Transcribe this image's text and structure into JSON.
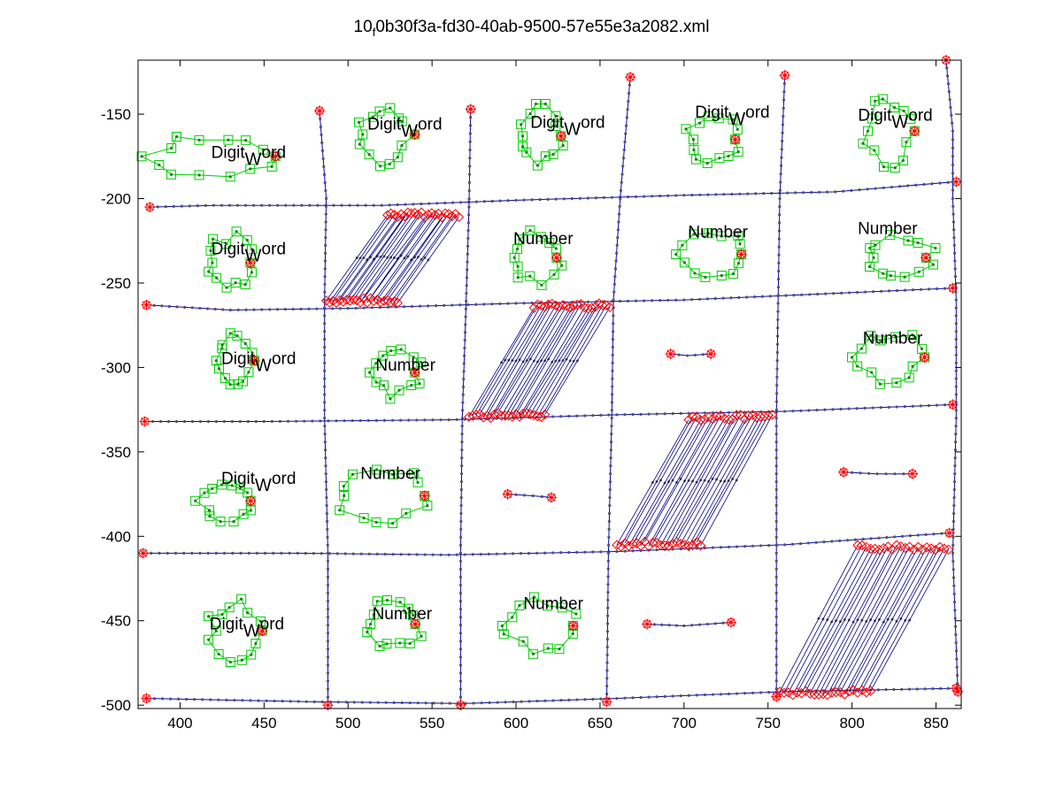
{
  "chart_data": {
    "type": "scatter",
    "title": {
      "main": "10",
      "sub": "f",
      "rest": "0b30f3a-fd30-40ab-9500-57e55e3a2082.xml"
    },
    "xlabel": "",
    "ylabel": "",
    "xlim": [
      375,
      865
    ],
    "ylim": [
      -502,
      -118
    ],
    "xticks": [
      400,
      450,
      500,
      550,
      600,
      650,
      700,
      750,
      800,
      850
    ],
    "yticks": [
      -150,
      -200,
      -250,
      -300,
      -350,
      -400,
      -450,
      -500
    ],
    "grid": false,
    "colors": {
      "stroke": "#0000cc",
      "point": "#555555",
      "marker": "#ff0000",
      "box": "#00cc00",
      "box_dot": "#008800"
    },
    "box_labels": [
      {
        "main": "Digit",
        "sub": "W",
        "rest": "ord",
        "x": 463,
        "y": -176
      },
      {
        "main": "Digit",
        "sub": "W",
        "rest": "ord",
        "x": 556,
        "y": -159
      },
      {
        "main": "Digit",
        "sub": "W",
        "rest": "ord",
        "x": 653,
        "y": -158
      },
      {
        "main": "Digit",
        "sub": "W",
        "rest": "ord",
        "x": 751,
        "y": -152
      },
      {
        "main": "Digit",
        "sub": "W",
        "rest": "ord",
        "x": 848,
        "y": -154
      },
      {
        "main": "Digit",
        "sub": "W",
        "rest": "ord",
        "x": 463,
        "y": -233
      },
      {
        "main": "Number",
        "rest": "",
        "x": 634,
        "y": -227
      },
      {
        "main": "Number",
        "rest": "",
        "x": 738,
        "y": -223
      },
      {
        "main": "Number",
        "rest": "",
        "x": 839,
        "y": -221
      },
      {
        "main": "Digit",
        "sub": "W",
        "rest": "ord",
        "x": 469,
        "y": -298
      },
      {
        "main": "Number",
        "rest": "",
        "x": 552,
        "y": -302
      },
      {
        "main": "Number",
        "rest": "",
        "x": 842,
        "y": -286
      },
      {
        "main": "Digit",
        "sub": "W",
        "rest": "ord",
        "x": 469,
        "y": -369
      },
      {
        "main": "Number",
        "rest": "",
        "x": 543,
        "y": -366
      },
      {
        "main": "Digit",
        "sub": "W",
        "rest": "ord",
        "x": 462,
        "y": -455
      },
      {
        "main": "Number",
        "rest": "",
        "x": 550,
        "y": -449
      },
      {
        "main": "Number",
        "rest": "",
        "x": 640,
        "y": -443
      }
    ],
    "horizontal_strokes": [
      [
        [
          382,
          -205
        ],
        [
          420,
          -204
        ],
        [
          520,
          -204
        ],
        [
          600,
          -201
        ],
        [
          700,
          -198
        ],
        [
          790,
          -196
        ],
        [
          862,
          -190
        ]
      ],
      [
        [
          380,
          -263
        ],
        [
          430,
          -266
        ],
        [
          500,
          -265
        ],
        [
          600,
          -262
        ],
        [
          700,
          -260
        ],
        [
          770,
          -257
        ],
        [
          860,
          -253
        ]
      ],
      [
        [
          379,
          -332
        ],
        [
          450,
          -332
        ],
        [
          560,
          -331
        ],
        [
          660,
          -328
        ],
        [
          760,
          -326
        ],
        [
          860,
          -322
        ]
      ],
      [
        [
          378,
          -410
        ],
        [
          470,
          -410
        ],
        [
          560,
          -411
        ],
        [
          660,
          -409
        ],
        [
          760,
          -405
        ],
        [
          858,
          -398
        ]
      ],
      [
        [
          380,
          -496
        ],
        [
          480,
          -498
        ],
        [
          570,
          -499
        ],
        [
          660,
          -496
        ],
        [
          760,
          -492
        ],
        [
          862,
          -490
        ]
      ]
    ],
    "vertical_strokes": [
      [
        [
          483,
          -148
        ],
        [
          487,
          -200
        ],
        [
          486,
          -260
        ],
        [
          486,
          -330
        ],
        [
          488,
          -410
        ],
        [
          488,
          -500
        ]
      ],
      [
        [
          573,
          -147
        ],
        [
          572,
          -205
        ],
        [
          570,
          -270
        ],
        [
          568,
          -330
        ],
        [
          567,
          -410
        ],
        [
          567,
          -500
        ]
      ],
      [
        [
          668,
          -128
        ],
        [
          662,
          -200
        ],
        [
          658,
          -260
        ],
        [
          657,
          -330
        ],
        [
          655,
          -410
        ],
        [
          654,
          -498
        ]
      ],
      [
        [
          760,
          -127
        ],
        [
          757,
          -200
        ],
        [
          756,
          -262
        ],
        [
          755,
          -330
        ],
        [
          755,
          -410
        ],
        [
          755,
          -495
        ]
      ],
      [
        [
          856,
          -118
        ],
        [
          860,
          -160
        ],
        [
          860,
          -200
        ],
        [
          862,
          -260
        ],
        [
          862,
          -330
        ],
        [
          860,
          -410
        ],
        [
          863,
          -492
        ]
      ]
    ],
    "hatch_regions": [
      {
        "x0": 487,
        "x1": 568,
        "y0": -208,
        "y1": -262
      },
      {
        "x0": 572,
        "x1": 658,
        "y0": -262,
        "y1": -330
      },
      {
        "x0": 660,
        "x1": 755,
        "y0": -328,
        "y1": -406
      },
      {
        "x0": 757,
        "x1": 860,
        "y0": -405,
        "y1": -494
      }
    ],
    "short_dashes": [
      [
        [
          595,
          -375
        ],
        [
          610,
          -376
        ],
        [
          621,
          -377
        ]
      ],
      [
        [
          692,
          -292
        ],
        [
          702,
          -293
        ],
        [
          716,
          -292
        ]
      ],
      [
        [
          795,
          -362
        ],
        [
          815,
          -363
        ],
        [
          836,
          -363
        ]
      ],
      [
        [
          678,
          -452
        ],
        [
          700,
          -453
        ],
        [
          728,
          -451
        ]
      ]
    ],
    "glyphs": [
      {
        "cx": 420,
        "cy": -175,
        "w": 90,
        "h": 30
      },
      {
        "cx": 522,
        "cy": -162,
        "w": 36,
        "h": 40
      },
      {
        "cx": 615,
        "cy": -163,
        "w": 30,
        "h": 40
      },
      {
        "cx": 718,
        "cy": -165,
        "w": 38,
        "h": 34
      },
      {
        "cx": 822,
        "cy": -160,
        "w": 36,
        "h": 46
      },
      {
        "cx": 430,
        "cy": -238,
        "w": 34,
        "h": 38
      },
      {
        "cx": 612,
        "cy": -235,
        "w": 40,
        "h": 34
      },
      {
        "cx": 718,
        "cy": -233,
        "w": 50,
        "h": 32
      },
      {
        "cx": 828,
        "cy": -235,
        "w": 50,
        "h": 30
      },
      {
        "cx": 432,
        "cy": -296,
        "w": 26,
        "h": 34
      },
      {
        "cx": 528,
        "cy": -303,
        "w": 36,
        "h": 32
      },
      {
        "cx": 822,
        "cy": -294,
        "w": 48,
        "h": 34
      },
      {
        "cx": 428,
        "cy": -379,
        "w": 38,
        "h": 28
      },
      {
        "cx": 522,
        "cy": -376,
        "w": 64,
        "h": 40
      },
      {
        "cx": 433,
        "cy": -456,
        "w": 36,
        "h": 40
      },
      {
        "cx": 527,
        "cy": -452,
        "w": 40,
        "h": 36
      },
      {
        "cx": 615,
        "cy": -453,
        "w": 50,
        "h": 36
      }
    ]
  }
}
